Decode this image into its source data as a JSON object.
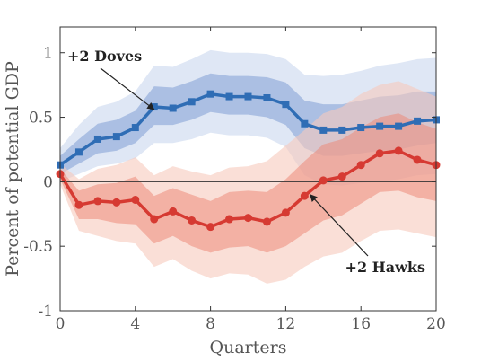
{
  "chart_data": {
    "type": "line",
    "xlabel": "Quarters",
    "ylabel": "Percent of potential GDP",
    "xlim": [
      0,
      20
    ],
    "ylim": [
      -1,
      1.2
    ],
    "xticks": [
      0,
      4,
      8,
      12,
      16,
      20
    ],
    "yticks": [
      -1,
      -0.5,
      0,
      0.5,
      1
    ],
    "xtick_labels": [
      "0",
      "4",
      "8",
      "12",
      "16",
      "20"
    ],
    "ytick_labels": [
      "-1",
      "-0.5",
      "0",
      "0.5",
      "1"
    ],
    "grid": false,
    "zero_line": true,
    "x": [
      0,
      1,
      2,
      3,
      4,
      5,
      6,
      7,
      8,
      9,
      10,
      11,
      12,
      13,
      14,
      15,
      16,
      17,
      18,
      19,
      20
    ],
    "series": [
      {
        "name": "+2 Doves",
        "color": "#2f6db5",
        "marker": "square",
        "values": [
          0.13,
          0.23,
          0.33,
          0.35,
          0.42,
          0.58,
          0.57,
          0.62,
          0.68,
          0.66,
          0.66,
          0.65,
          0.6,
          0.45,
          0.4,
          0.4,
          0.42,
          0.43,
          0.43,
          0.47,
          0.48
        ],
        "band_inner": {
          "color": "#7f9fd3",
          "lower": [
            0.06,
            0.14,
            0.22,
            0.24,
            0.3,
            0.44,
            0.44,
            0.48,
            0.54,
            0.52,
            0.52,
            0.5,
            0.44,
            0.26,
            0.2,
            0.2,
            0.22,
            0.24,
            0.25,
            0.28,
            0.3
          ],
          "upper": [
            0.2,
            0.33,
            0.45,
            0.48,
            0.55,
            0.74,
            0.73,
            0.78,
            0.84,
            0.82,
            0.82,
            0.81,
            0.77,
            0.63,
            0.6,
            0.6,
            0.63,
            0.66,
            0.67,
            0.7,
            0.7
          ]
        },
        "band_outer": {
          "color": "#c9d7ee",
          "lower": [
            0.0,
            0.06,
            0.12,
            0.14,
            0.18,
            0.3,
            0.3,
            0.33,
            0.38,
            0.36,
            0.36,
            0.34,
            0.27,
            0.05,
            -0.02,
            -0.03,
            -0.01,
            0.0,
            0.02,
            0.05,
            0.06
          ],
          "upper": [
            0.26,
            0.44,
            0.58,
            0.62,
            0.7,
            0.9,
            0.89,
            0.95,
            1.02,
            1.0,
            1.0,
            0.99,
            0.95,
            0.83,
            0.82,
            0.83,
            0.86,
            0.9,
            0.92,
            0.95,
            0.96
          ]
        }
      },
      {
        "name": "+2 Hawks",
        "color": "#d63a32",
        "marker": "circle",
        "values": [
          0.06,
          -0.18,
          -0.15,
          -0.16,
          -0.14,
          -0.29,
          -0.23,
          -0.3,
          -0.35,
          -0.29,
          -0.28,
          -0.31,
          -0.24,
          -0.11,
          0.01,
          0.04,
          0.13,
          0.22,
          0.24,
          0.17,
          0.13
        ],
        "band_inner": {
          "color": "#ec8b7a",
          "lower": [
            0.02,
            -0.29,
            -0.29,
            -0.32,
            -0.33,
            -0.48,
            -0.42,
            -0.5,
            -0.55,
            -0.51,
            -0.5,
            -0.55,
            -0.5,
            -0.4,
            -0.3,
            -0.26,
            -0.17,
            -0.08,
            -0.07,
            -0.12,
            -0.15
          ],
          "upper": [
            0.1,
            -0.07,
            -0.02,
            -0.01,
            0.04,
            -0.11,
            -0.05,
            -0.1,
            -0.15,
            -0.08,
            -0.07,
            -0.08,
            0.02,
            0.16,
            0.29,
            0.33,
            0.42,
            0.5,
            0.53,
            0.46,
            0.41
          ]
        },
        "band_outer": {
          "color": "#f6c9bd",
          "lower": [
            -0.02,
            -0.38,
            -0.42,
            -0.46,
            -0.48,
            -0.66,
            -0.6,
            -0.69,
            -0.75,
            -0.71,
            -0.72,
            -0.79,
            -0.76,
            -0.66,
            -0.58,
            -0.55,
            -0.46,
            -0.38,
            -0.37,
            -0.4,
            -0.43
          ],
          "upper": [
            0.14,
            0.02,
            0.1,
            0.13,
            0.19,
            0.05,
            0.12,
            0.08,
            0.05,
            0.11,
            0.12,
            0.16,
            0.28,
            0.4,
            0.53,
            0.58,
            0.68,
            0.75,
            0.78,
            0.72,
            0.66
          ]
        }
      }
    ],
    "annotations": [
      {
        "text": "+2 Doves",
        "series": "+2 Doves",
        "arrow_to": [
          5,
          0.56
        ]
      },
      {
        "text": "+2 Hawks",
        "series": "+2 Hawks",
        "arrow_to": [
          13.3,
          -0.1
        ]
      }
    ]
  }
}
